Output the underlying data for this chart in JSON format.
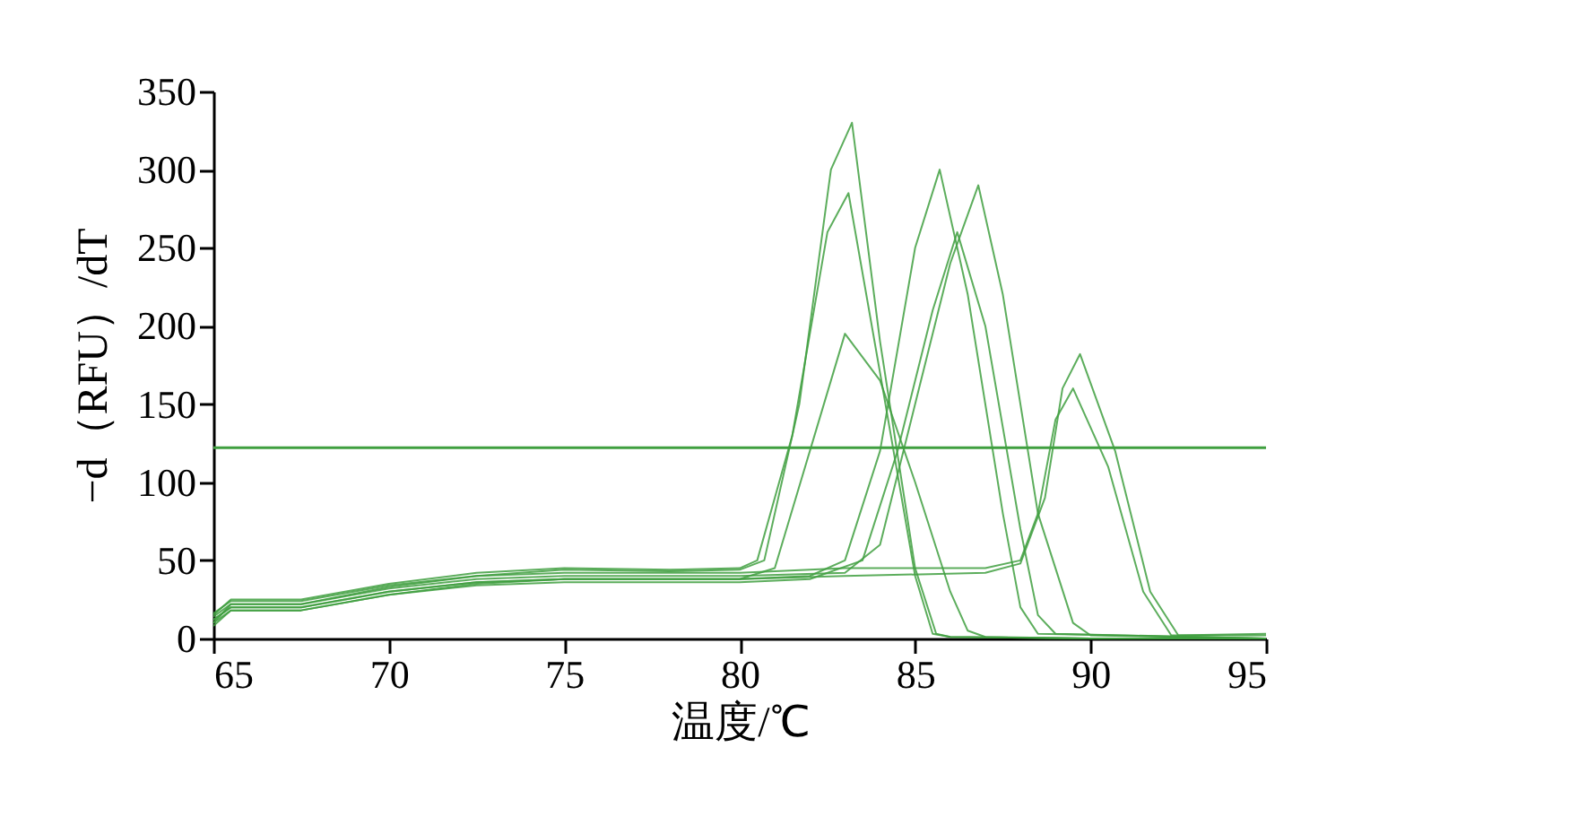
{
  "chart_data": {
    "type": "line",
    "xlabel": "温度/℃",
    "ylabel": "−d（RFU）/dT",
    "xlim": [
      65,
      95
    ],
    "ylim": [
      0,
      350
    ],
    "xticks": [
      65,
      70,
      75,
      80,
      85,
      90,
      95
    ],
    "yticks": [
      0,
      50,
      100,
      150,
      200,
      250,
      300,
      350
    ],
    "grid": false,
    "legend": false,
    "marker": "none",
    "line_style": "solid",
    "series": [
      {
        "color": "#3f9f3f",
        "x": [
          65,
          65.5,
          67.5,
          70,
          72.5,
          75,
          78,
          80,
          80.5,
          81.5,
          82.5,
          83.1,
          84,
          85,
          85.5,
          86,
          90,
          95
        ],
        "values": [
          15,
          25,
          25,
          35,
          42,
          45,
          44,
          45,
          50,
          130,
          260,
          285,
          170,
          40,
          3,
          1,
          0,
          0
        ]
      },
      {
        "color": "#3f9f3f",
        "x": [
          65,
          65.5,
          67.5,
          70,
          72.5,
          75,
          78,
          80,
          80.7,
          81.7,
          82.6,
          83.2,
          84,
          85,
          85.6,
          86,
          90,
          95
        ],
        "values": [
          10,
          22,
          22,
          33,
          40,
          44,
          43,
          44,
          50,
          150,
          300,
          330,
          190,
          45,
          3,
          1,
          0,
          0
        ]
      },
      {
        "color": "#3f9f3f",
        "x": [
          65,
          65.5,
          67.5,
          70,
          72.5,
          75,
          78,
          80,
          81,
          82,
          83,
          84,
          85,
          86,
          86.5,
          87,
          90,
          95
        ],
        "values": [
          8,
          18,
          18,
          28,
          35,
          38,
          38,
          38,
          45,
          120,
          195,
          165,
          100,
          30,
          5,
          1,
          0,
          0
        ]
      },
      {
        "color": "#3f9f3f",
        "x": [
          65,
          65.5,
          67.5,
          70,
          72.5,
          75,
          78,
          80,
          82,
          83,
          84,
          85,
          85.7,
          86.5,
          87.5,
          88,
          88.5,
          95
        ],
        "values": [
          12,
          20,
          20,
          30,
          36,
          38,
          38,
          38,
          40,
          50,
          120,
          250,
          300,
          220,
          80,
          20,
          3,
          0
        ]
      },
      {
        "color": "#3f9f3f",
        "x": [
          65,
          65.5,
          67.5,
          70,
          72.5,
          75,
          78,
          80,
          82,
          83.5,
          84.5,
          85.5,
          86.2,
          87,
          88,
          88.5,
          89,
          95
        ],
        "values": [
          10,
          18,
          18,
          28,
          34,
          36,
          36,
          36,
          38,
          50,
          120,
          210,
          260,
          200,
          70,
          15,
          3,
          0
        ]
      },
      {
        "color": "#3f9f3f",
        "x": [
          65,
          65.5,
          67.5,
          70,
          72.5,
          75,
          78,
          80,
          83,
          84,
          85,
          86,
          86.8,
          87.5,
          88.5,
          89.5,
          90,
          95
        ],
        "values": [
          14,
          22,
          22,
          32,
          38,
          40,
          40,
          40,
          42,
          60,
          150,
          240,
          290,
          220,
          80,
          10,
          2,
          0
        ]
      },
      {
        "color": "#3f9f3f",
        "x": [
          65,
          65.5,
          67.5,
          70,
          72.5,
          75,
          78,
          80,
          83,
          87,
          88,
          88.5,
          89,
          89.5,
          90.5,
          91.5,
          92.3,
          95
        ],
        "values": [
          16,
          24,
          24,
          34,
          40,
          42,
          42,
          42,
          45,
          45,
          50,
          80,
          140,
          160,
          110,
          30,
          2,
          2
        ]
      },
      {
        "color": "#3f9f3f",
        "x": [
          65,
          65.5,
          67.5,
          70,
          72.5,
          75,
          78,
          80,
          83,
          87,
          88,
          88.7,
          89.2,
          89.7,
          90.7,
          91.7,
          92.5,
          95
        ],
        "values": [
          12,
          20,
          20,
          30,
          36,
          38,
          38,
          38,
          40,
          42,
          48,
          90,
          160,
          182,
          120,
          30,
          2,
          3
        ]
      }
    ],
    "ref_lines": [
      {
        "axis": "y",
        "value": 122,
        "color": "#3f9f3f",
        "line_style": "solid"
      }
    ]
  }
}
